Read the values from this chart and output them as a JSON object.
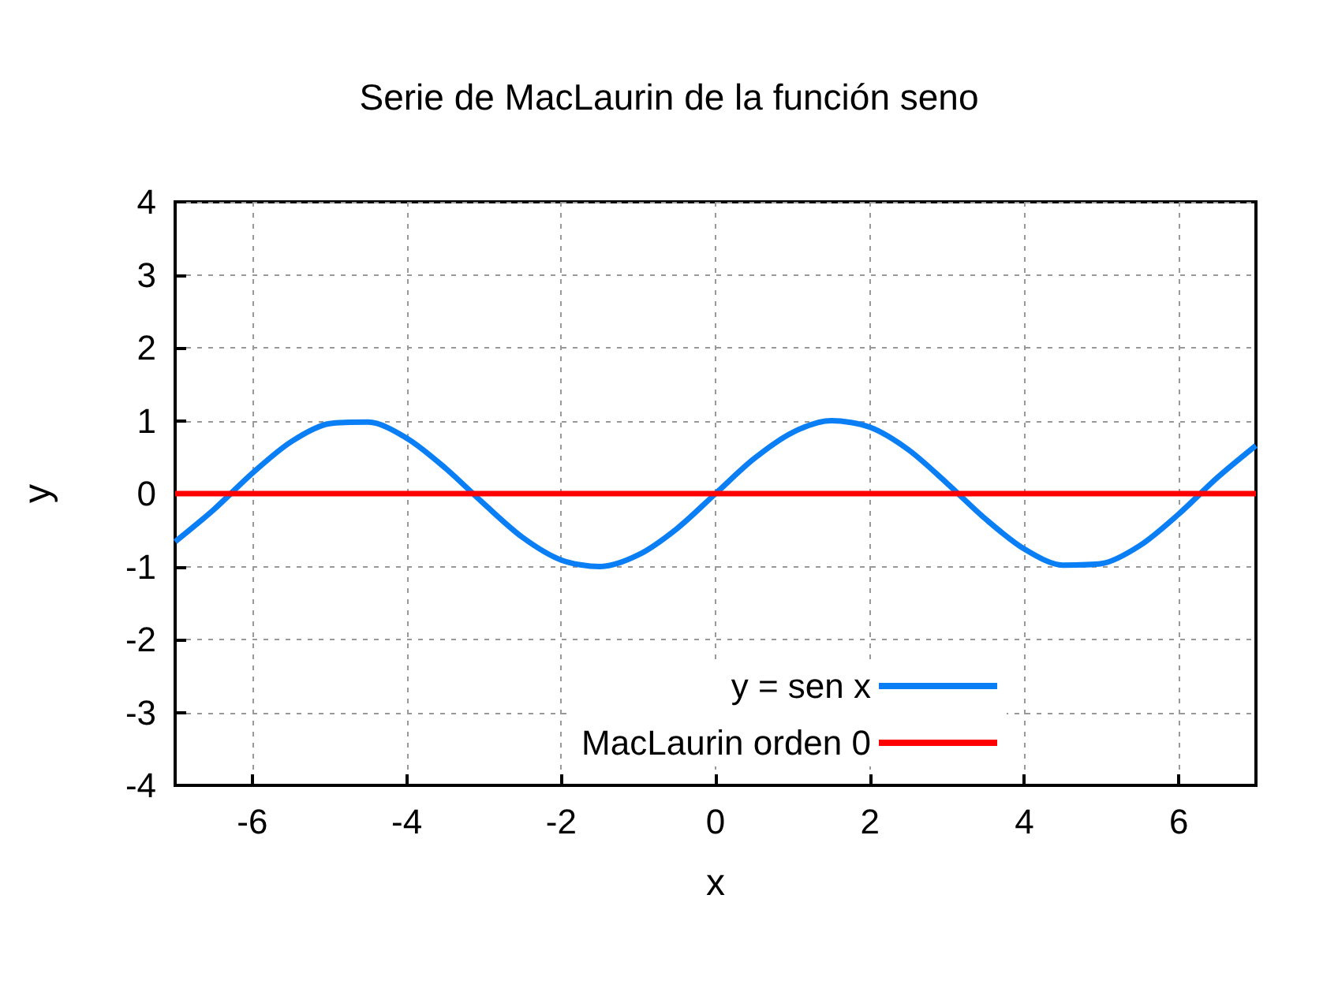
{
  "chart_data": {
    "type": "line",
    "title": "Serie de MacLaurin de la función seno",
    "xlabel": "x",
    "ylabel": "y",
    "xlim": [
      -7,
      7
    ],
    "xticks": [
      -6,
      -4,
      -2,
      0,
      2,
      4,
      6
    ],
    "ylim": [
      -4,
      4
    ],
    "yticks": [
      -4,
      -3,
      -2,
      -1,
      0,
      1,
      2,
      3,
      4
    ],
    "grid": true,
    "legend": "bottom right",
    "marker": "none",
    "line_style": "solid",
    "series": [
      {
        "name": "y = sen x",
        "color": "#0a7ff5",
        "x": [
          -7,
          -6.5,
          -6,
          -5.5,
          -5,
          -4.5,
          -4,
          -3.5,
          -3,
          -2.5,
          -2,
          -1.5,
          -1,
          -0.5,
          0,
          0.5,
          1,
          1.5,
          2,
          2.5,
          3,
          3.5,
          4,
          4.5,
          5,
          5.5,
          6,
          6.5,
          7
        ],
        "values": [
          -0.66,
          -0.22,
          0.28,
          0.71,
          0.96,
          0.98,
          0.76,
          0.35,
          -0.14,
          -0.6,
          -0.91,
          -1.0,
          -0.84,
          -0.48,
          0,
          0.48,
          0.84,
          1.0,
          0.91,
          0.6,
          0.14,
          -0.35,
          -0.76,
          -0.98,
          -0.96,
          -0.71,
          -0.28,
          0.22,
          0.66
        ]
      },
      {
        "name": "MacLaurin orden 0",
        "color": "#ff0000",
        "x": [
          -7,
          7
        ],
        "values": [
          0,
          0
        ]
      }
    ]
  }
}
